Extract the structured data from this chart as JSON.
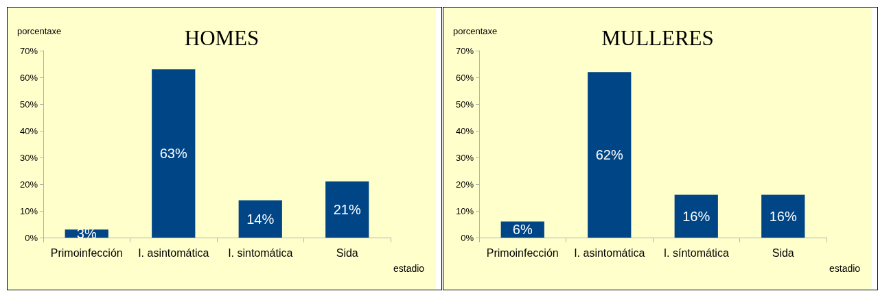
{
  "chart_data": [
    {
      "type": "bar",
      "title": "HOMES",
      "xlabel": "estadio",
      "ylabel": "porcentaxe",
      "categories": [
        "Primoinfección",
        "I. asintomática",
        "I. sintomática",
        "Sida"
      ],
      "values": [
        3,
        63,
        14,
        21
      ],
      "value_labels": [
        "3%",
        "63%",
        "14%",
        "21%"
      ],
      "color": "#004586",
      "ylim": [
        0,
        70
      ],
      "yticks": [
        {
          "value": 0,
          "label": "0%"
        },
        {
          "value": 10,
          "label": "10%"
        },
        {
          "value": 20,
          "label": "20%"
        },
        {
          "value": 30,
          "label": "30%"
        },
        {
          "value": 40,
          "label": "40%"
        },
        {
          "value": 50,
          "label": "50%"
        },
        {
          "value": 60,
          "label": "60%"
        },
        {
          "value": 70,
          "label": "70%"
        }
      ],
      "grid": false
    },
    {
      "type": "bar",
      "title": "MULLERES",
      "xlabel": "estadio",
      "ylabel": "porcentaxe",
      "categories": [
        "Primoinfección",
        "I. asintomática",
        "I. síntomática",
        "Sida"
      ],
      "values": [
        6,
        62,
        16,
        16
      ],
      "value_labels": [
        "6%",
        "62%",
        "16%",
        "16%"
      ],
      "color": "#004586",
      "ylim": [
        0,
        70
      ],
      "yticks": [
        {
          "value": 0,
          "label": "0%"
        },
        {
          "value": 10,
          "label": "10%"
        },
        {
          "value": 20,
          "label": "20%"
        },
        {
          "value": 30,
          "label": "30%"
        },
        {
          "value": 40,
          "label": "40%"
        },
        {
          "value": 50,
          "label": "50%"
        },
        {
          "value": 60,
          "label": "60%"
        },
        {
          "value": 70,
          "label": "70%"
        }
      ],
      "grid": false
    }
  ]
}
